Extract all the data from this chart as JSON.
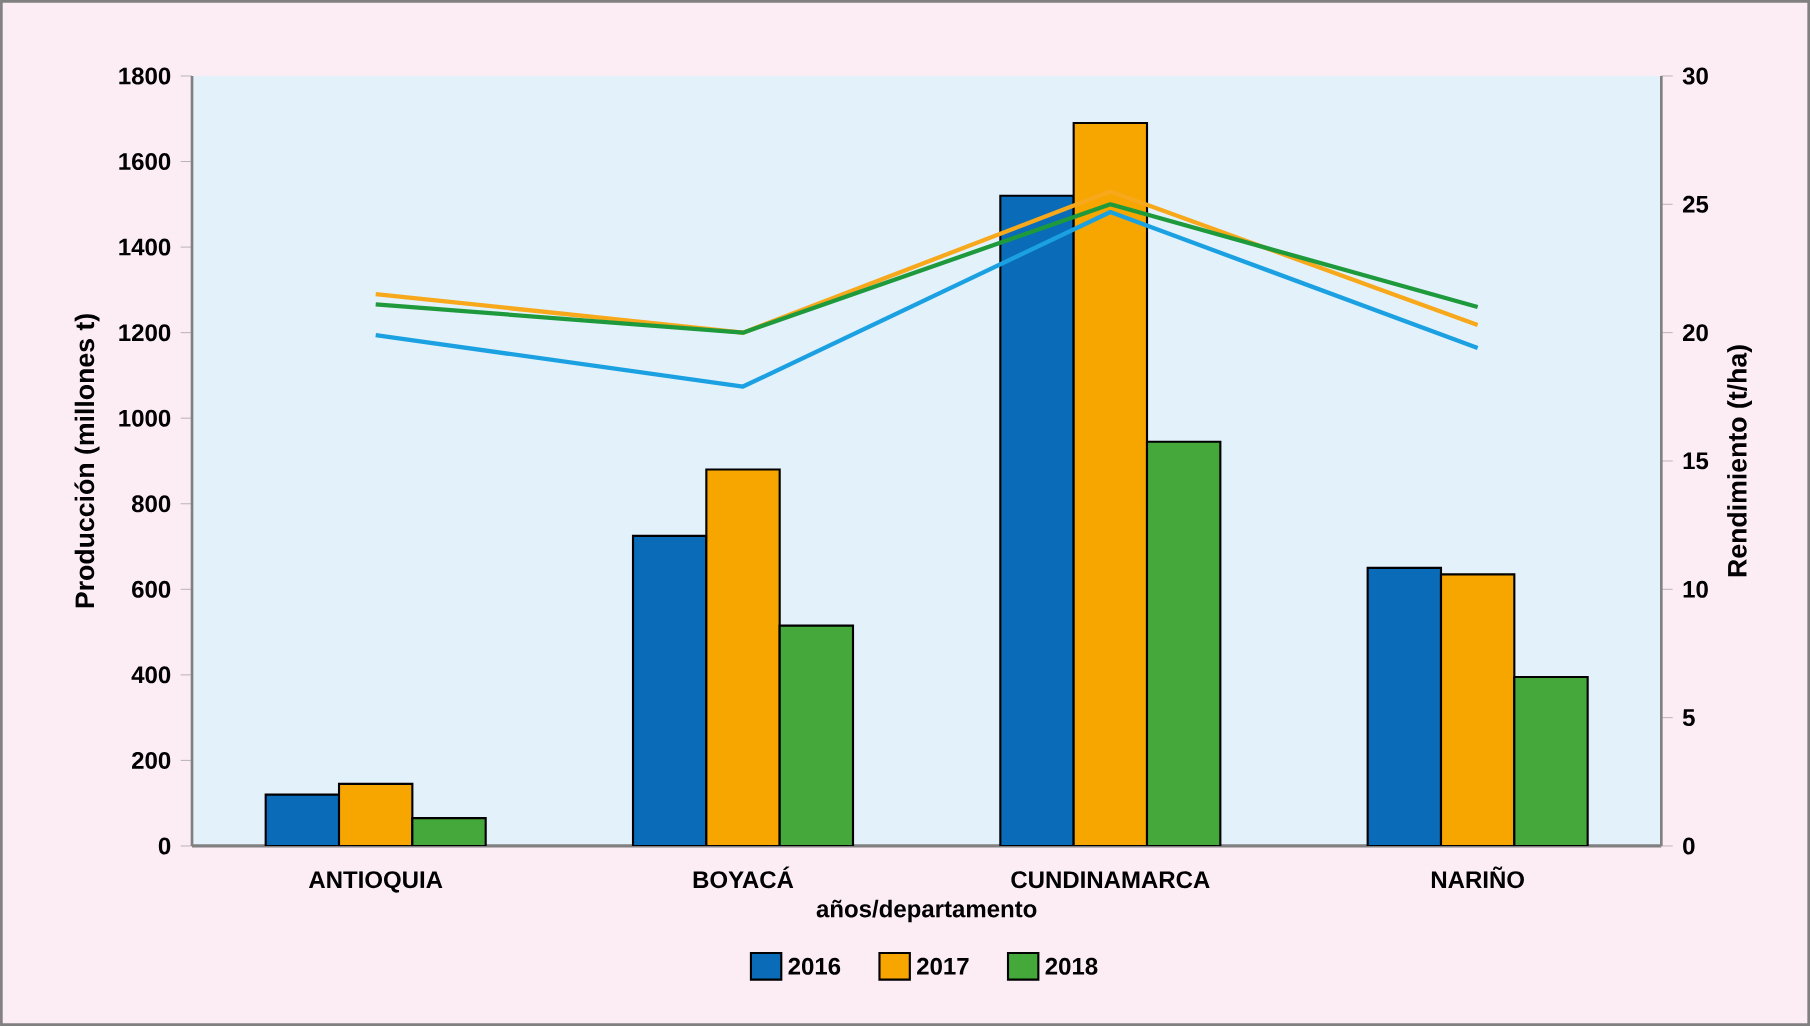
{
  "chart_data": {
    "type": "bar",
    "xlabel": "años/departamento",
    "ylabel": "Producción (millones t)",
    "y2label": "Rendimiento (t/ha)",
    "categories": [
      "ANTIOQUIA",
      "BOYACÁ",
      "CUNDINAMARCA",
      "NARIÑO"
    ],
    "ylim": [
      0,
      1800
    ],
    "yticks": [
      0,
      200,
      400,
      600,
      800,
      1000,
      1200,
      1400,
      1600,
      1800
    ],
    "y2lim": [
      0,
      30
    ],
    "y2ticks": [
      0,
      5,
      10,
      15,
      20,
      25,
      30
    ],
    "legend": "bottom",
    "series": [
      {
        "name": "2016",
        "color": "#0a6cb8",
        "values": [
          120,
          725,
          1520,
          650
        ]
      },
      {
        "name": "2017",
        "color": "#f7a600",
        "values": [
          145,
          880,
          1690,
          635
        ]
      },
      {
        "name": "2018",
        "color": "#45a83a",
        "values": [
          65,
          515,
          945,
          395
        ]
      },
      {
        "type": "line",
        "axis": "y2",
        "color": "#1ba1e2",
        "values": [
          19.9,
          17.9,
          24.7,
          19.4
        ]
      },
      {
        "type": "line",
        "axis": "y2",
        "color": "#f7a81b",
        "values": [
          21.5,
          20.0,
          25.5,
          20.3
        ]
      },
      {
        "type": "line",
        "axis": "y2",
        "color": "#1e9a3c",
        "values": [
          21.1,
          20.0,
          25.0,
          21.0
        ]
      }
    ]
  }
}
